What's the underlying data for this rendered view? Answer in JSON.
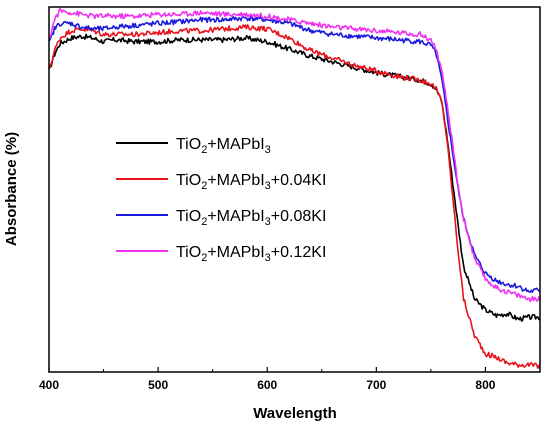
{
  "chart_data": {
    "type": "line",
    "title": "",
    "xlabel": "Wavelength",
    "ylabel": "Absorbance (%)",
    "xlim": [
      400,
      850
    ],
    "ylim": [
      0,
      1
    ],
    "x_ticks": [
      "400",
      "500",
      "600",
      "700",
      "800"
    ],
    "y_ticks_labeled": false,
    "grid": false,
    "legend_position": "center-left",
    "series": [
      {
        "legend": {
          "base": "TiO",
          "sub1": "2",
          "mid": "+MAPbI",
          "sub2": "3",
          "suffix": ""
        },
        "color": "#000000",
        "x": [
          400,
          405,
          410,
          420,
          430,
          440,
          450,
          460,
          480,
          500,
          520,
          540,
          560,
          580,
          600,
          620,
          640,
          660,
          680,
          700,
          720,
          740,
          750,
          755,
          760,
          765,
          770,
          775,
          780,
          790,
          800,
          810,
          820,
          830,
          840,
          850
        ],
        "y": [
          0.825,
          0.87,
          0.9,
          0.915,
          0.92,
          0.915,
          0.905,
          0.91,
          0.905,
          0.905,
          0.91,
          0.91,
          0.91,
          0.915,
          0.905,
          0.885,
          0.865,
          0.85,
          0.835,
          0.82,
          0.81,
          0.8,
          0.79,
          0.775,
          0.74,
          0.64,
          0.52,
          0.4,
          0.29,
          0.2,
          0.17,
          0.155,
          0.16,
          0.145,
          0.15,
          0.15
        ]
      },
      {
        "legend": {
          "base": "TiO",
          "sub1": "2",
          "mid": "+MAPbI",
          "sub2": "3",
          "suffix": "+0.04KI"
        },
        "color": "#e8141c",
        "x": [
          400,
          405,
          410,
          420,
          430,
          440,
          450,
          460,
          480,
          500,
          520,
          540,
          560,
          580,
          600,
          620,
          640,
          660,
          680,
          700,
          720,
          740,
          750,
          755,
          760,
          765,
          770,
          775,
          780,
          790,
          800,
          810,
          820,
          830,
          840,
          850
        ],
        "y": [
          0.825,
          0.88,
          0.915,
          0.935,
          0.94,
          0.935,
          0.925,
          0.925,
          0.925,
          0.93,
          0.935,
          0.935,
          0.94,
          0.945,
          0.94,
          0.915,
          0.88,
          0.86,
          0.84,
          0.825,
          0.81,
          0.8,
          0.79,
          0.775,
          0.74,
          0.63,
          0.48,
          0.33,
          0.2,
          0.1,
          0.05,
          0.04,
          0.025,
          0.02,
          0.02,
          0.015
        ]
      },
      {
        "legend": {
          "base": "TiO",
          "sub1": "2",
          "mid": "+MAPbI",
          "sub2": "3",
          "suffix": "+0.08KI"
        },
        "color": "#1a1adc",
        "x": [
          400,
          405,
          410,
          420,
          430,
          440,
          450,
          460,
          480,
          500,
          520,
          540,
          560,
          580,
          600,
          620,
          640,
          660,
          680,
          700,
          720,
          740,
          750,
          755,
          760,
          765,
          770,
          775,
          780,
          790,
          800,
          810,
          820,
          830,
          840,
          850
        ],
        "y": [
          0.9,
          0.94,
          0.955,
          0.955,
          0.945,
          0.94,
          0.94,
          0.945,
          0.95,
          0.955,
          0.96,
          0.965,
          0.965,
          0.97,
          0.965,
          0.955,
          0.935,
          0.925,
          0.92,
          0.915,
          0.91,
          0.905,
          0.895,
          0.87,
          0.8,
          0.7,
          0.6,
          0.5,
          0.42,
          0.32,
          0.27,
          0.25,
          0.24,
          0.235,
          0.22,
          0.225
        ]
      },
      {
        "legend": {
          "base": "TiO",
          "sub1": "2",
          "mid": "+MAPbI",
          "sub2": "3",
          "suffix": "+0.12KI"
        },
        "color": "#f032f0",
        "x": [
          400,
          405,
          410,
          420,
          430,
          440,
          450,
          460,
          480,
          500,
          520,
          540,
          560,
          580,
          600,
          620,
          640,
          660,
          680,
          700,
          720,
          740,
          750,
          755,
          760,
          765,
          770,
          775,
          780,
          790,
          800,
          810,
          820,
          830,
          840,
          850
        ],
        "y": [
          0.91,
          0.965,
          0.99,
          0.985,
          0.98,
          0.975,
          0.975,
          0.975,
          0.975,
          0.98,
          0.98,
          0.985,
          0.98,
          0.98,
          0.975,
          0.965,
          0.955,
          0.945,
          0.94,
          0.935,
          0.93,
          0.925,
          0.91,
          0.885,
          0.82,
          0.73,
          0.62,
          0.51,
          0.42,
          0.31,
          0.255,
          0.23,
          0.22,
          0.21,
          0.2,
          0.2
        ]
      }
    ]
  }
}
